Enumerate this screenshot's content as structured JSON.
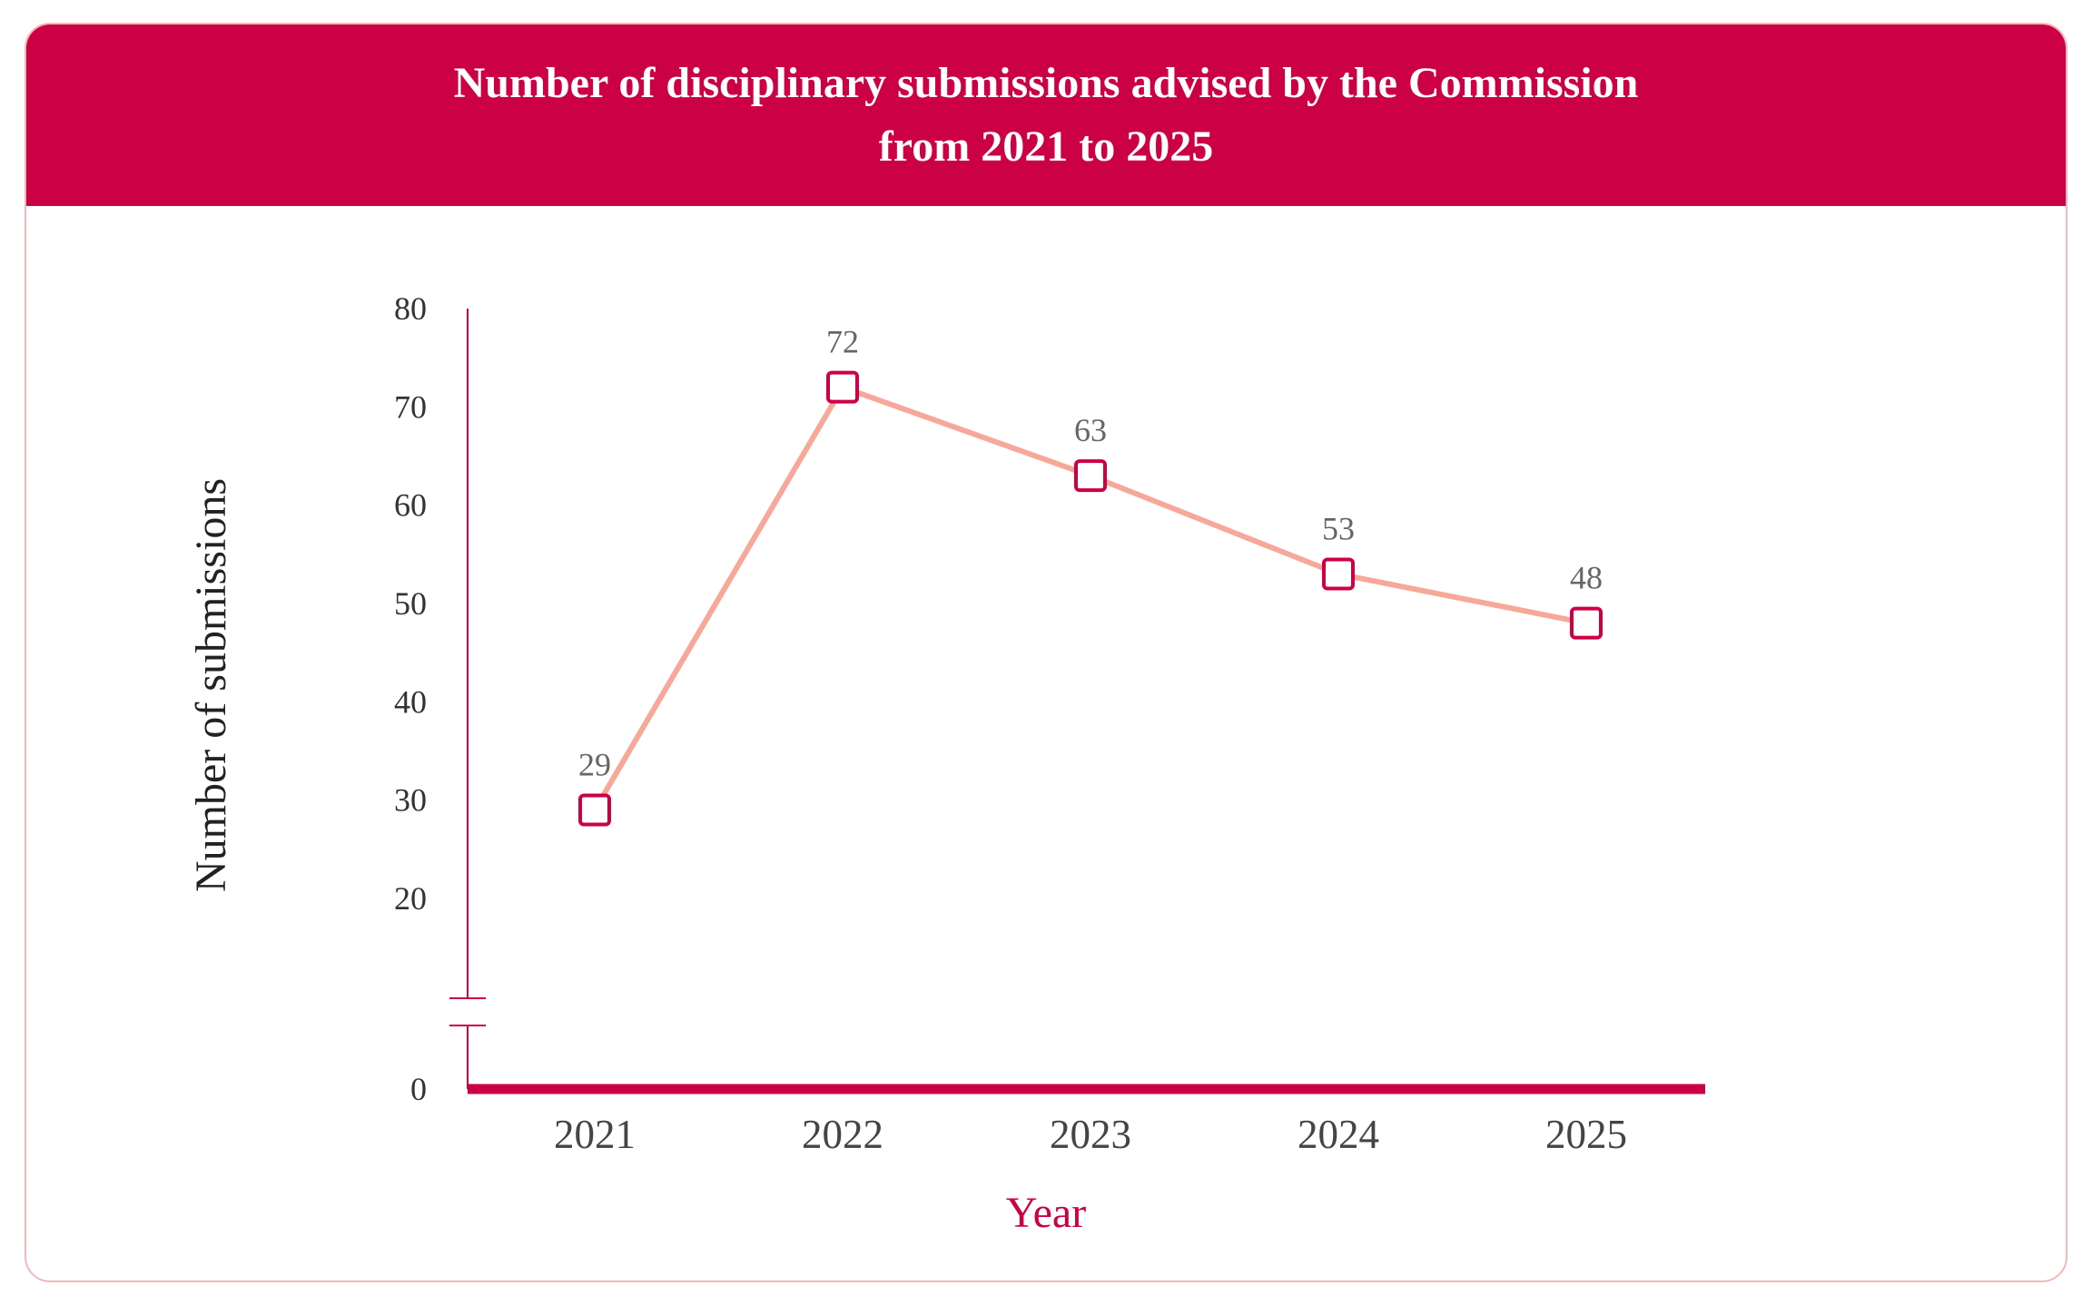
{
  "header": {
    "title_line1": "Number of disciplinary submissions advised by the Commission",
    "title_line2": "from 2021 to 2025"
  },
  "colors": {
    "accent": "#cc0044",
    "line": "#f7a899",
    "border": "#f4b8b8",
    "highlight_text": "#cc0044"
  },
  "chart_data": {
    "type": "line",
    "title": "Number of disciplinary submissions advised by the Commission from 2021 to 2025",
    "xlabel": "Year",
    "ylabel": "Number of submissions",
    "categories": [
      "2021",
      "2022",
      "2023",
      "2024",
      "2025"
    ],
    "series": [
      {
        "values": [
          29,
          72,
          63,
          53,
          48
        ]
      }
    ],
    "data_labels": [
      "29",
      "72",
      "63",
      "53",
      "48"
    ],
    "y_ticks": [
      "80",
      "70",
      "60",
      "50",
      "40",
      "30",
      "20",
      "0"
    ],
    "ylim": [
      0,
      80
    ],
    "axis_break": true,
    "grid": false,
    "highlight_category": "2025"
  }
}
